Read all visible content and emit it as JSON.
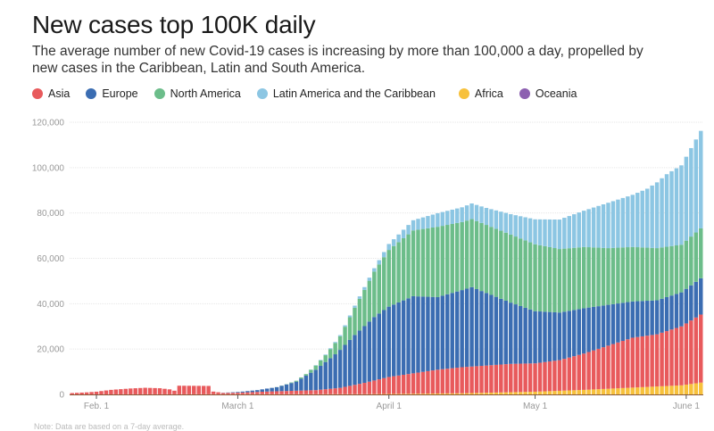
{
  "chart_data": {
    "type": "bar",
    "stacked": true,
    "title": "New cases top 100K daily",
    "subtitle": "The average number of new Covid-19 cases is increasing by more than 100,000 a day, propelled by new cases in the Caribbean, Latin and South America.",
    "xlabel": "",
    "ylabel": "",
    "ylim": [
      0,
      120000
    ],
    "yticks": [
      0,
      20000,
      40000,
      60000,
      80000,
      100000,
      120000
    ],
    "ytick_labels": [
      "0",
      "20,000",
      "40,000",
      "60,000",
      "80,000",
      "100,000",
      "120,000"
    ],
    "grid": true,
    "legend_position": "top-left",
    "x_start_date": "Jan. 27",
    "x_end_date": "June 4",
    "xticks": [
      {
        "label": "Feb. 1",
        "day": 5
      },
      {
        "label": "March 1",
        "day": 34
      },
      {
        "label": "April 1",
        "day": 65
      },
      {
        "label": "May 1",
        "day": 95
      },
      {
        "label": "June 1",
        "day": 126
      }
    ],
    "num_days": 130,
    "series_order": [
      "Africa",
      "Asia",
      "Europe",
      "North America",
      "Latin America and the Caribbean",
      "Oceania"
    ],
    "series": [
      {
        "name": "Africa",
        "color": "#f7c13c",
        "keypoints": [
          [
            0,
            0
          ],
          [
            60,
            100
          ],
          [
            70,
            300
          ],
          [
            80,
            500
          ],
          [
            95,
            1200
          ],
          [
            105,
            2000
          ],
          [
            115,
            3000
          ],
          [
            125,
            4000
          ],
          [
            129,
            5200
          ]
        ]
      },
      {
        "name": "Asia",
        "color": "#e85a5c",
        "keypoints": [
          [
            0,
            600
          ],
          [
            3,
            900
          ],
          [
            5,
            1200
          ],
          [
            8,
            2000
          ],
          [
            12,
            2600
          ],
          [
            15,
            2900
          ],
          [
            18,
            2700
          ],
          [
            20,
            2200
          ],
          [
            21,
            1600
          ],
          [
            22,
            3800
          ],
          [
            28,
            3700
          ],
          [
            29,
            1200
          ],
          [
            31,
            600
          ],
          [
            34,
            700
          ],
          [
            40,
            1200
          ],
          [
            50,
            1800
          ],
          [
            55,
            2800
          ],
          [
            60,
            5000
          ],
          [
            65,
            7500
          ],
          [
            70,
            9000
          ],
          [
            75,
            10500
          ],
          [
            80,
            11500
          ],
          [
            85,
            12000
          ],
          [
            90,
            12500
          ],
          [
            95,
            12500
          ],
          [
            100,
            13500
          ],
          [
            105,
            16000
          ],
          [
            110,
            19000
          ],
          [
            115,
            22000
          ],
          [
            120,
            23000
          ],
          [
            125,
            26000
          ],
          [
            129,
            30000
          ]
        ]
      },
      {
        "name": "Europe",
        "color": "#3b6db2",
        "keypoints": [
          [
            0,
            0
          ],
          [
            30,
            0
          ],
          [
            34,
            300
          ],
          [
            38,
            800
          ],
          [
            42,
            1800
          ],
          [
            46,
            4000
          ],
          [
            50,
            9000
          ],
          [
            54,
            15000
          ],
          [
            58,
            22000
          ],
          [
            62,
            28000
          ],
          [
            65,
            31000
          ],
          [
            70,
            34000
          ],
          [
            75,
            32000
          ],
          [
            80,
            34000
          ],
          [
            82,
            35000
          ],
          [
            86,
            31000
          ],
          [
            90,
            27000
          ],
          [
            95,
            23000
          ],
          [
            100,
            21000
          ],
          [
            105,
            20000
          ],
          [
            110,
            18000
          ],
          [
            115,
            16000
          ],
          [
            120,
            15000
          ],
          [
            125,
            15000
          ],
          [
            129,
            16000
          ]
        ]
      },
      {
        "name": "North America",
        "color": "#6cbd8a",
        "keypoints": [
          [
            0,
            0
          ],
          [
            40,
            0
          ],
          [
            44,
            100
          ],
          [
            48,
            700
          ],
          [
            52,
            3000
          ],
          [
            55,
            6000
          ],
          [
            58,
            12000
          ],
          [
            62,
            20000
          ],
          [
            65,
            25000
          ],
          [
            70,
            29000
          ],
          [
            75,
            31000
          ],
          [
            80,
            30000
          ],
          [
            85,
            30000
          ],
          [
            90,
            30000
          ],
          [
            95,
            29500
          ],
          [
            100,
            28000
          ],
          [
            105,
            27000
          ],
          [
            110,
            25000
          ],
          [
            115,
            24000
          ],
          [
            120,
            23000
          ],
          [
            125,
            21000
          ],
          [
            129,
            22000
          ]
        ]
      },
      {
        "name": "Latin America and the Caribbean",
        "color": "#8cc6e3",
        "keypoints": [
          [
            0,
            0
          ],
          [
            48,
            0
          ],
          [
            55,
            500
          ],
          [
            62,
            1500
          ],
          [
            66,
            3000
          ],
          [
            70,
            4500
          ],
          [
            75,
            6000
          ],
          [
            80,
            6500
          ],
          [
            85,
            7500
          ],
          [
            90,
            9000
          ],
          [
            95,
            11000
          ],
          [
            100,
            13000
          ],
          [
            105,
            16000
          ],
          [
            110,
            20000
          ],
          [
            115,
            23000
          ],
          [
            118,
            26000
          ],
          [
            122,
            32000
          ],
          [
            125,
            35000
          ],
          [
            129,
            43000
          ]
        ]
      },
      {
        "name": "Oceania",
        "color": "#8c5fb0",
        "keypoints": [
          [
            0,
            0
          ],
          [
            129,
            0
          ]
        ]
      }
    ]
  },
  "legend": [
    {
      "label": "Asia",
      "color": "#e85a5c"
    },
    {
      "label": "Europe",
      "color": "#3b6db2"
    },
    {
      "label": "North America",
      "color": "#6cbd8a"
    },
    {
      "label": "Latin America and the Caribbean",
      "color": "#8cc6e3"
    },
    {
      "label": "Africa",
      "color": "#f7c13c"
    },
    {
      "label": "Oceania",
      "color": "#8c5fb0"
    }
  ],
  "note": "Note: Data are based on a 7-day average."
}
